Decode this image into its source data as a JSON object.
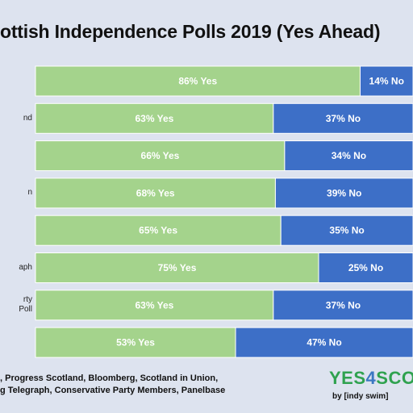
{
  "chart_data": {
    "type": "bar",
    "stacked": true,
    "orientation": "horizontal",
    "title": "ottish Independence Polls 2019 (Yes Ahead)",
    "categories": [
      "",
      "nd",
      "",
      "n",
      "",
      "aph",
      "rty Poll",
      ""
    ],
    "series": [
      {
        "name": "Yes",
        "color": "#a4d38c",
        "values": [
          86,
          63,
          66,
          68,
          65,
          75,
          63,
          53
        ],
        "labels": [
          "86% Yes",
          "63% Yes",
          "66% Yes",
          "68% Yes",
          "65% Yes",
          "75% Yes",
          "63% Yes",
          "53% Yes"
        ]
      },
      {
        "name": "No",
        "color": "#3d6fc7",
        "values": [
          14,
          37,
          34,
          39,
          35,
          25,
          37,
          47
        ],
        "labels": [
          "14% No",
          "37% No",
          "34% No",
          "39% No",
          "35% No",
          "25% No",
          "37% No",
          "47% No"
        ]
      }
    ],
    "grid": false,
    "legend": "none"
  },
  "footer": {
    "sources_line1": ", Progress Scotland, Bloomberg, Scotland in Union,",
    "sources_line2": "g Telegraph, Conservative Party Members, Panelbase"
  },
  "brand": {
    "part1": "YES",
    "part2": "4",
    "part3": "SCO",
    "credit": "by [indy swim]"
  }
}
